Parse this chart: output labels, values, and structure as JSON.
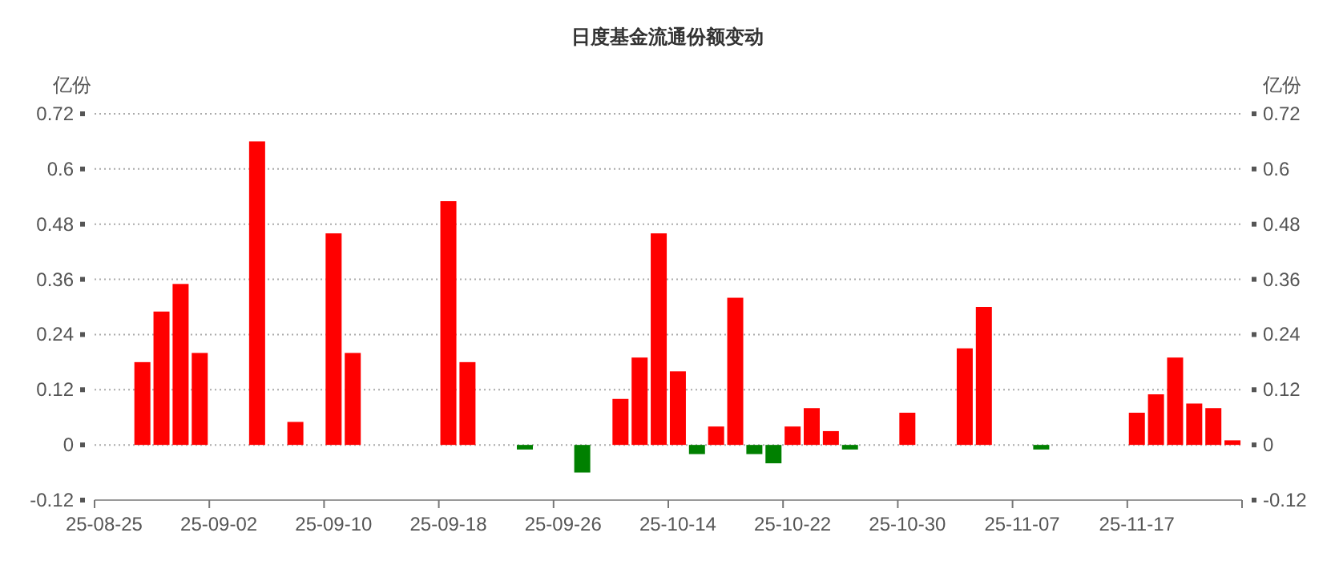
{
  "chart_data": {
    "type": "bar",
    "title": "日度基金流通份额变动",
    "ylabel": "亿份",
    "y2label": "亿份",
    "categories": [
      "25-08-25",
      null,
      null,
      null,
      null,
      null,
      "25-09-02",
      null,
      null,
      null,
      null,
      null,
      "25-09-10",
      null,
      null,
      null,
      null,
      null,
      "25-09-18",
      null,
      null,
      null,
      null,
      null,
      "25-09-26",
      null,
      null,
      null,
      null,
      null,
      "25-10-14",
      null,
      null,
      null,
      null,
      null,
      "25-10-22",
      null,
      null,
      null,
      null,
      null,
      "25-10-30",
      null,
      null,
      null,
      null,
      null,
      "25-11-07",
      null,
      null,
      null,
      null,
      null,
      "25-11-17",
      null,
      null,
      null,
      null,
      null
    ],
    "values": [
      0,
      0,
      0.18,
      0.29,
      0.35,
      0.2,
      0,
      0,
      0.66,
      0,
      0.05,
      0,
      0.46,
      0.2,
      0,
      0,
      0,
      0,
      0.53,
      0.18,
      0,
      0,
      -0.01,
      0,
      0,
      -0.06,
      0,
      0.1,
      0.19,
      0.46,
      0.16,
      -0.02,
      0.04,
      0.32,
      -0.02,
      -0.04,
      0.04,
      0.08,
      0.03,
      -0.01,
      0,
      0,
      0.07,
      0,
      0,
      0.21,
      0.3,
      0,
      0,
      -0.01,
      0,
      0,
      0,
      0,
      0.07,
      0.11,
      0.19,
      0.09,
      0.08,
      0.01
    ],
    "colors": [
      "#ff0000",
      "#ff0000",
      "#ff0000",
      "#ff0000",
      "#ff0000",
      "#ff0000",
      "#ff0000",
      "#ff0000",
      "#ff0000",
      "#ff0000",
      "#ff0000",
      "#ff0000",
      "#ff0000",
      "#ff0000",
      "#ff0000",
      "#ff0000",
      "#ff0000",
      "#ff0000",
      "#ff0000",
      "#ff0000",
      "#ff0000",
      "#ff0000",
      "#008000",
      "#ff0000",
      "#ff0000",
      "#008000",
      "#ff0000",
      "#ff0000",
      "#ff0000",
      "#ff0000",
      "#ff0000",
      "#008000",
      "#ff0000",
      "#ff0000",
      "#008000",
      "#008000",
      "#ff0000",
      "#ff0000",
      "#ff0000",
      "#008000",
      "#ff0000",
      "#ff0000",
      "#ff0000",
      "#ff0000",
      "#ff0000",
      "#ff0000",
      "#ff0000",
      "#ff0000",
      "#ff0000",
      "#008000",
      "#ff0000",
      "#ff0000",
      "#ff0000",
      "#ff0000",
      "#ff0000",
      "#ff0000",
      "#ff0000",
      "#ff0000",
      "#ff0000",
      "#ff0000"
    ],
    "ylim": [
      -0.12,
      0.72
    ],
    "yticks": [
      -0.12,
      0,
      0.12,
      0.24,
      0.36,
      0.48,
      0.6,
      0.72
    ],
    "y2lim": [
      -0.12,
      0.72
    ],
    "y2ticks": [
      -0.12,
      0,
      0.12,
      0.24,
      0.36,
      0.48,
      0.6,
      0.72
    ],
    "grid": "y"
  }
}
